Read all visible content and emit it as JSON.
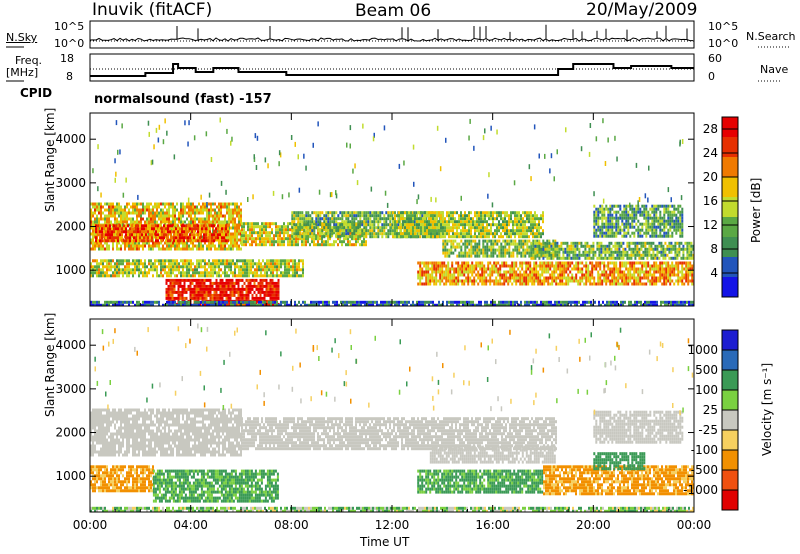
{
  "header": {
    "station": "Inuvik (fitACF)",
    "beam": "Beam 06",
    "date": "20/May/2009"
  },
  "top_panels": {
    "nsky_label": "N.Sky",
    "nsearch_label": "N.Search",
    "nsky_ticks": [
      "10^5",
      "10^0"
    ],
    "nsearch_ticks": [
      "10^5",
      "10^0"
    ],
    "freq_label": "Freq.",
    "freq_unit": "[MHz]",
    "freq_ticks": [
      "18",
      "8"
    ],
    "nave_label": "Nave",
    "nave_ticks": [
      "60",
      "0"
    ],
    "cpid_label": "CPID",
    "program": "normalsound (fast) -157"
  },
  "chart_data": [
    {
      "type": "heatmap",
      "panel": "power",
      "ylabel": "Slant Range [km]",
      "xlabel": "Time UT",
      "x_ticks": [
        "00:00",
        "04:00",
        "08:00",
        "12:00",
        "16:00",
        "20:00",
        "00:00"
      ],
      "x_range_hours": [
        0,
        24
      ],
      "y_ticks": [
        1000,
        2000,
        3000,
        4000
      ],
      "ylim": [
        180,
        4600
      ],
      "colorbar": {
        "label": "Power [dB]",
        "ticks": [
          4,
          8,
          12,
          16,
          20,
          24,
          28
        ],
        "range": [
          0,
          30
        ],
        "colors": [
          "#1414e6",
          "#2255bb",
          "#3f8f52",
          "#5aa844",
          "#c2dc2e",
          "#f0c000",
          "#f07a00",
          "#e63000",
          "#e60000"
        ]
      },
      "regions": [
        {
          "t0": 0.0,
          "t1": 6.0,
          "r0": 1500,
          "r1": 2550,
          "level": 18
        },
        {
          "t0": 0.2,
          "t1": 5.5,
          "r0": 1650,
          "r1": 2050,
          "level": 24
        },
        {
          "t0": 6.0,
          "t1": 11.0,
          "r0": 1600,
          "r1": 2100,
          "level": 16
        },
        {
          "t0": 8.0,
          "t1": 14.0,
          "r0": 1800,
          "r1": 2350,
          "level": 12
        },
        {
          "t0": 12.0,
          "t1": 18.0,
          "r0": 1800,
          "r1": 2350,
          "level": 14
        },
        {
          "t0": 14.0,
          "t1": 18.5,
          "r0": 1300,
          "r1": 1700,
          "level": 13
        },
        {
          "t0": 0.0,
          "t1": 8.5,
          "r0": 850,
          "r1": 1250,
          "level": 15
        },
        {
          "t0": 3.0,
          "t1": 7.5,
          "r0": 250,
          "r1": 800,
          "level": 28
        },
        {
          "t0": 13.0,
          "t1": 24.0,
          "r0": 700,
          "r1": 1200,
          "level": 20
        },
        {
          "t0": 17.5,
          "t1": 24.0,
          "r0": 1250,
          "r1": 1650,
          "level": 12
        },
        {
          "t0": 20.0,
          "t1": 23.5,
          "r0": 1800,
          "r1": 2500,
          "level": 10
        },
        {
          "t0": 0.0,
          "t1": 24.0,
          "r0": 180,
          "r1": 300,
          "level": 6
        }
      ]
    },
    {
      "type": "heatmap",
      "panel": "velocity",
      "ylabel": "Slant Range [km]",
      "xlabel": "Time UT",
      "x_ticks": [
        "00:00",
        "04:00",
        "08:00",
        "12:00",
        "16:00",
        "20:00",
        "00:00"
      ],
      "x_range_hours": [
        0,
        24
      ],
      "y_ticks": [
        1000,
        2000,
        3000,
        4000
      ],
      "ylim": [
        180,
        4600
      ],
      "colorbar": {
        "label": "Velocity [m s⁻¹]",
        "ticks": [
          "1000",
          "500",
          "100",
          "25",
          "-25",
          "-100",
          "-500",
          "-1000"
        ],
        "colors": [
          "#1c1cd0",
          "#2a6ab8",
          "#3a9a55",
          "#7ad040",
          "#c8c8c0",
          "#f6d060",
          "#f29000",
          "#f05010",
          "#e00000"
        ]
      },
      "regions": [
        {
          "t0": 0.0,
          "t1": 6.0,
          "r0": 1500,
          "r1": 2550,
          "value": 0
        },
        {
          "t0": 6.0,
          "t1": 18.5,
          "r0": 1650,
          "r1": 2350,
          "value": 0
        },
        {
          "t0": 13.5,
          "t1": 18.5,
          "r0": 1300,
          "r1": 1700,
          "value": 0
        },
        {
          "t0": 20.0,
          "t1": 23.5,
          "r0": 1800,
          "r1": 2500,
          "value": 0
        },
        {
          "t0": 0.0,
          "t1": 2.5,
          "r0": 700,
          "r1": 1250,
          "value": -150
        },
        {
          "t0": 2.5,
          "t1": 7.5,
          "r0": 450,
          "r1": 1150,
          "value": 150
        },
        {
          "t0": 13.0,
          "t1": 18.0,
          "r0": 650,
          "r1": 1150,
          "value": 150
        },
        {
          "t0": 18.0,
          "t1": 24.0,
          "r0": 600,
          "r1": 1250,
          "value": -150
        },
        {
          "t0": 20.0,
          "t1": 22.0,
          "r0": 1200,
          "r1": 1550,
          "value": 300
        },
        {
          "t0": 0.0,
          "t1": 24.0,
          "r0": 180,
          "r1": 300,
          "value": 60
        }
      ]
    }
  ]
}
